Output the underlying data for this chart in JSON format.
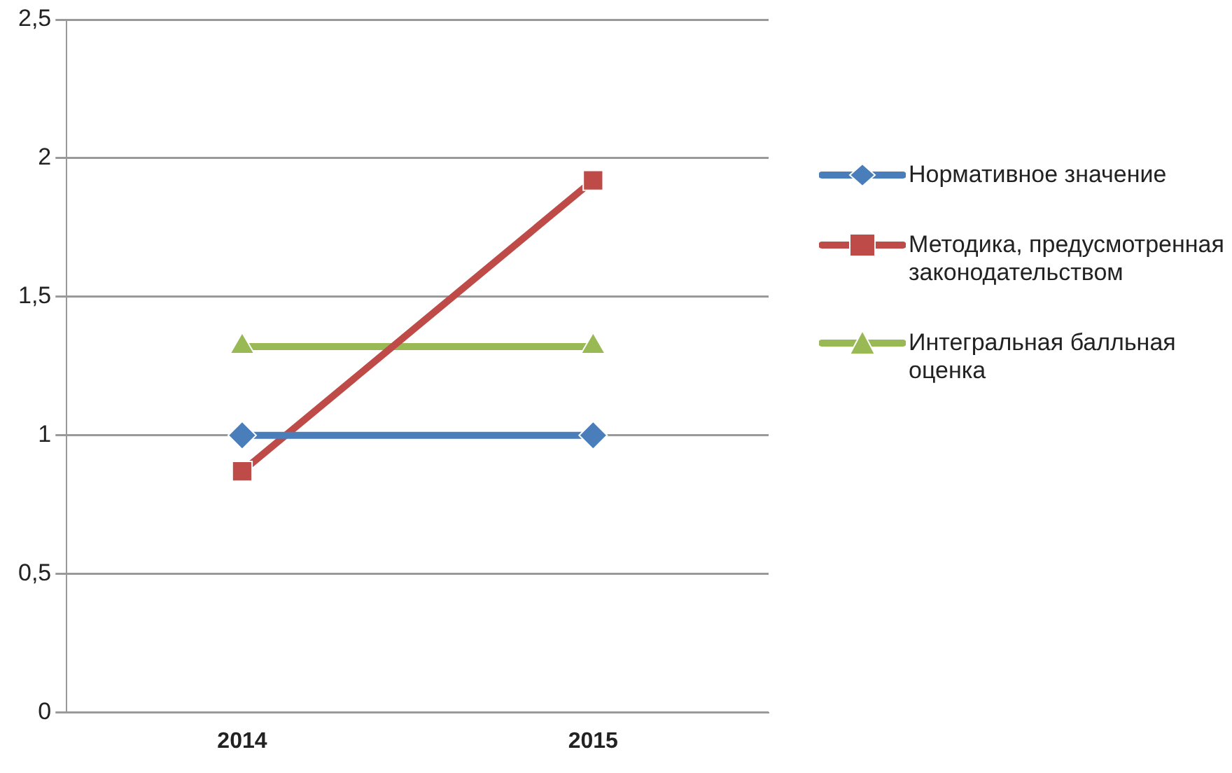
{
  "chart_data": {
    "type": "line",
    "categories": [
      "2014",
      "2015"
    ],
    "series": [
      {
        "name": "Нормативное значение",
        "color": "#4a7ebb",
        "values": [
          1,
          1
        ],
        "marker": "diamond"
      },
      {
        "name": "Методика, предусмотренная законодательством",
        "color": "#be4b48",
        "values": [
          0.87,
          1.92
        ],
        "marker": "square"
      },
      {
        "name": "Интегральная балльная оценка",
        "color": "#98b954",
        "values": [
          1.32,
          1.32
        ],
        "marker": "triangle"
      }
    ],
    "ylim": [
      0,
      2.5
    ],
    "yticks": [
      0,
      {
        "value": 0.5,
        "label": "0,5"
      },
      1,
      {
        "value": 1.5,
        "label": "1,5"
      },
      2,
      {
        "value": 2.5,
        "label": "2,5"
      }
    ],
    "grid": "y",
    "legend": "right"
  }
}
